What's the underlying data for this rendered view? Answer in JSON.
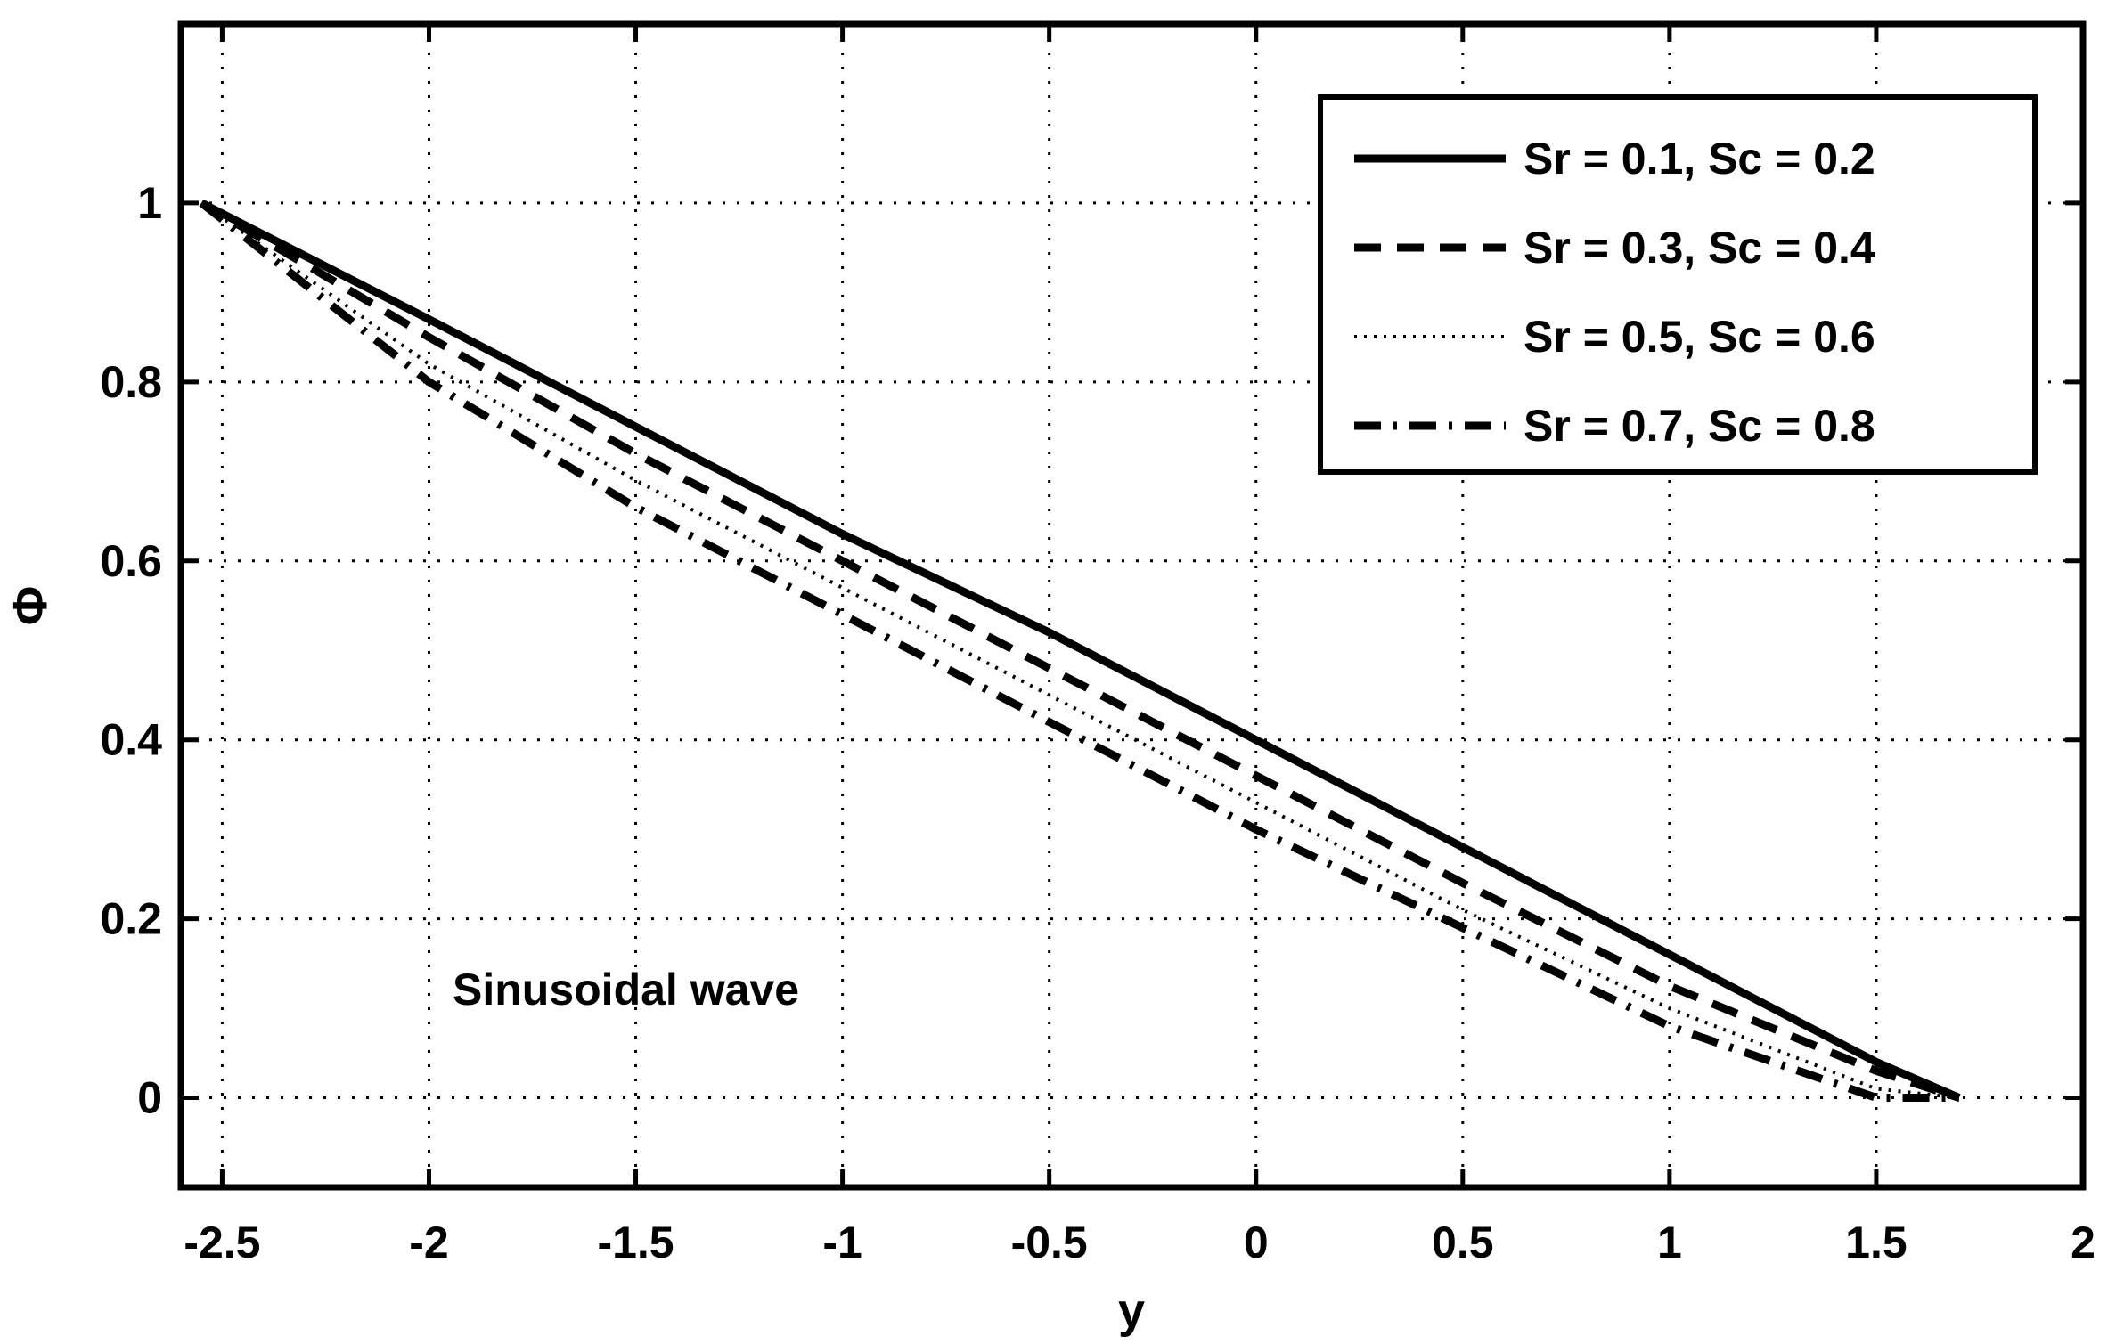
{
  "chart_data": {
    "type": "line",
    "title": "",
    "xlabel": "y",
    "ylabel": "Φ",
    "xlim": [
      -2.6,
      2.0
    ],
    "ylim": [
      -0.1,
      1.2
    ],
    "grid": true,
    "legend_position": "top-right",
    "annotation": "Sinusoidal wave",
    "x_ticks": [
      {
        "value": -2.5,
        "label": "-2.5"
      },
      {
        "value": -2.0,
        "label": "-2"
      },
      {
        "value": -1.5,
        "label": "-1.5"
      },
      {
        "value": -1.0,
        "label": "-1"
      },
      {
        "value": -0.5,
        "label": "-0.5"
      },
      {
        "value": 0.0,
        "label": "0"
      },
      {
        "value": 0.5,
        "label": "0.5"
      },
      {
        "value": 1.0,
        "label": "1"
      },
      {
        "value": 1.5,
        "label": "1.5"
      },
      {
        "value": 2.0,
        "label": "2"
      }
    ],
    "y_ticks": [
      {
        "value": 0.0,
        "label": "0"
      },
      {
        "value": 0.2,
        "label": "0.2"
      },
      {
        "value": 0.4,
        "label": "0.4"
      },
      {
        "value": 0.6,
        "label": "0.6"
      },
      {
        "value": 0.8,
        "label": "0.8"
      },
      {
        "value": 1.0,
        "label": "1"
      }
    ],
    "series": [
      {
        "name": "Sr = 0.1, Sc = 0.2",
        "style": "solid",
        "x": [
          -2.55,
          -2.0,
          -1.5,
          -1.0,
          -0.5,
          0.0,
          0.5,
          1.0,
          1.5,
          1.7
        ],
        "y": [
          1.0,
          0.87,
          0.75,
          0.63,
          0.52,
          0.4,
          0.28,
          0.16,
          0.04,
          0.0
        ]
      },
      {
        "name": "Sr = 0.3, Sc = 0.4",
        "style": "dashed",
        "x": [
          -2.55,
          -2.0,
          -1.5,
          -1.0,
          -0.5,
          0.0,
          0.5,
          1.0,
          1.5,
          1.7
        ],
        "y": [
          1.0,
          0.85,
          0.72,
          0.6,
          0.48,
          0.36,
          0.24,
          0.125,
          0.03,
          0.0
        ]
      },
      {
        "name": "Sr = 0.5, Sc = 0.6",
        "style": "dotted",
        "x": [
          -2.55,
          -2.0,
          -1.5,
          -1.0,
          -0.5,
          0.0,
          0.5,
          1.0,
          1.5,
          1.7
        ],
        "y": [
          1.0,
          0.82,
          0.69,
          0.57,
          0.45,
          0.33,
          0.21,
          0.1,
          0.01,
          0.0
        ]
      },
      {
        "name": "Sr = 0.7, Sc = 0.8",
        "style": "dashdot",
        "x": [
          -2.55,
          -2.0,
          -1.5,
          -1.0,
          -0.5,
          0.0,
          0.5,
          1.0,
          1.5,
          1.7
        ],
        "y": [
          1.0,
          0.8,
          0.66,
          0.54,
          0.42,
          0.3,
          0.19,
          0.08,
          0.0,
          0.0
        ]
      }
    ]
  }
}
